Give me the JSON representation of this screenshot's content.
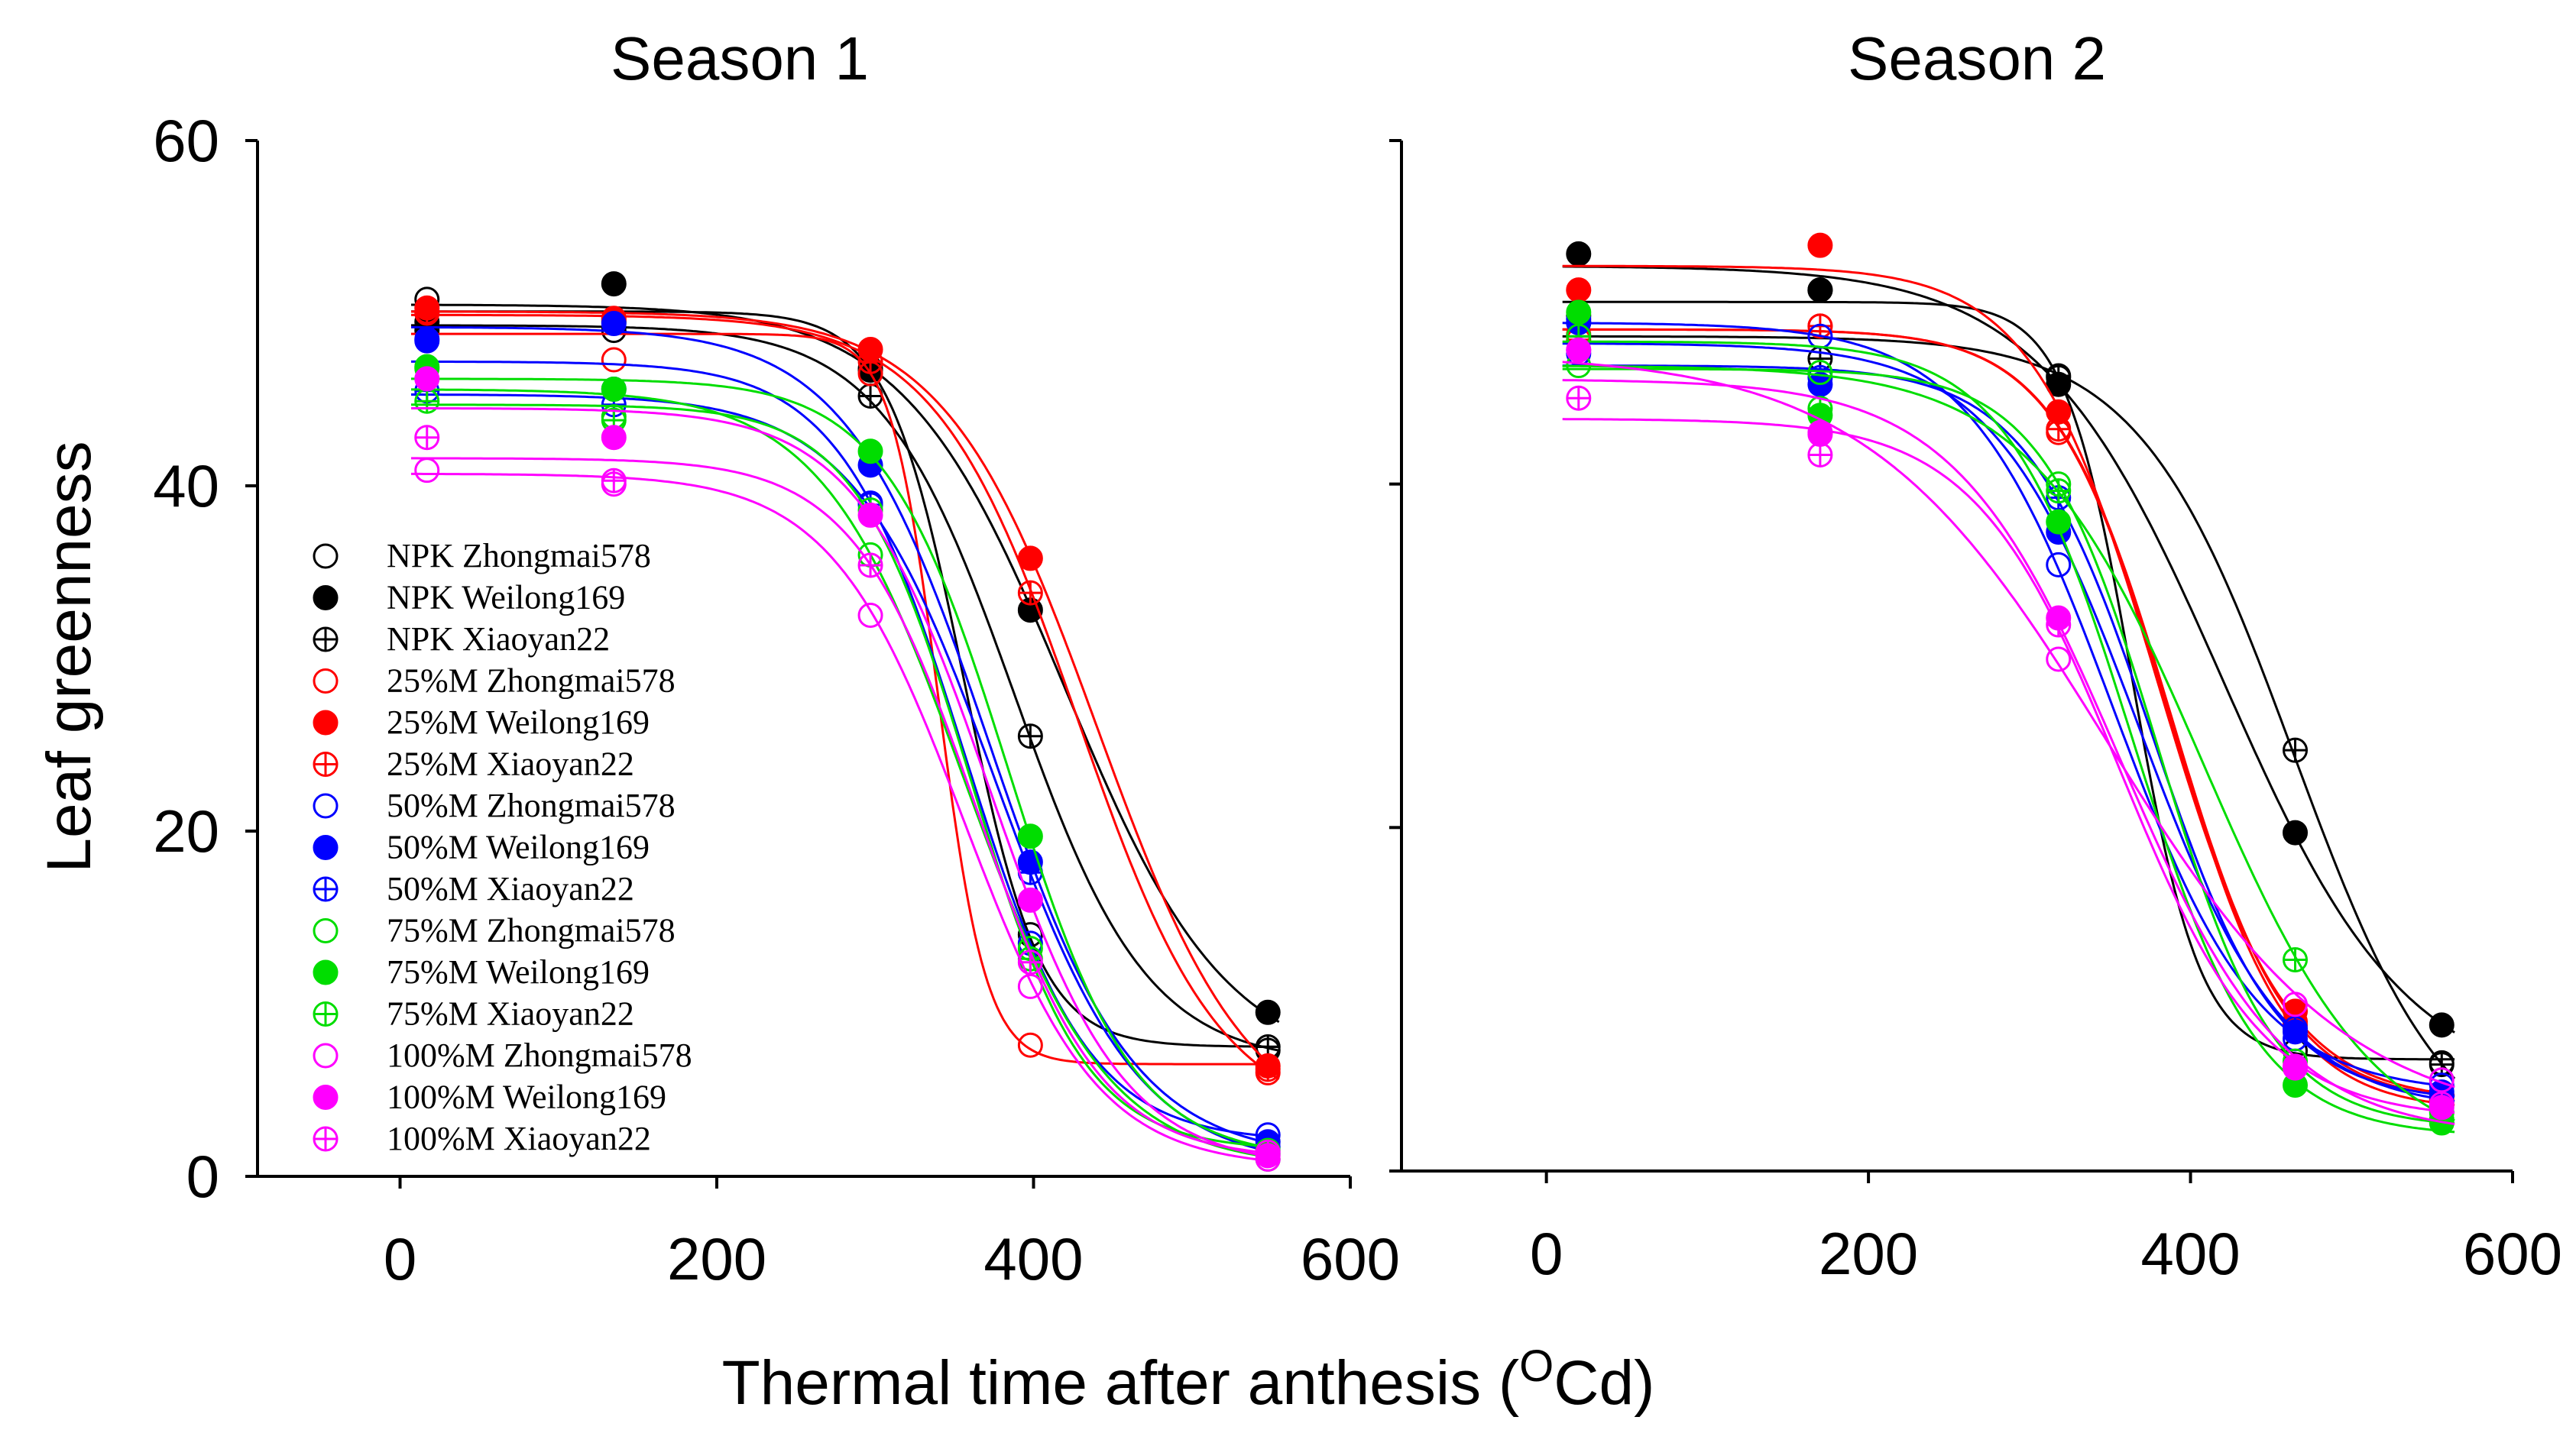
{
  "figure": {
    "ylabel": "Leaf greenness",
    "xlabel_main": "Thermal time after anthesis (",
    "xlabel_sup": "O",
    "xlabel_end": "Cd)"
  },
  "chart_data": [
    {
      "type": "scatter",
      "panel": "left",
      "title": "Season 1",
      "xlabel": "Thermal time after anthesis (OCd)",
      "ylabel": "Leaf greenness",
      "xlim": [
        -90,
        600
      ],
      "ylim": [
        0,
        60
      ],
      "xticks": [
        0,
        200,
        400,
        600
      ],
      "yticks": [
        0,
        20,
        40,
        60
      ],
      "xtick_labels": [
        "0",
        "200",
        "400",
        "600"
      ],
      "ytick_labels": [
        "0",
        "20",
        "40",
        "60"
      ],
      "legend_position": "bottom-left",
      "grid": false,
      "series": [
        {
          "name": "NPK Zhongmai578",
          "color": "#000000",
          "marker": "open",
          "x": [
            17,
            135,
            297,
            398,
            548
          ],
          "y": [
            50.8,
            49.0,
            46.8,
            14.0,
            7.3
          ]
        },
        {
          "name": "NPK Weilong169",
          "color": "#000000",
          "marker": "filled",
          "x": [
            17,
            135,
            297,
            398,
            548
          ],
          "y": [
            49.5,
            51.7,
            46.7,
            32.8,
            9.5
          ]
        },
        {
          "name": "NPK Xiaoyan22",
          "color": "#000000",
          "marker": "plus",
          "x": [
            17,
            135,
            297,
            398,
            548
          ],
          "y": [
            49.0,
            49.5,
            45.2,
            25.5,
            7.5
          ]
        },
        {
          "name": "25%M Zhongmai578",
          "color": "#ff0000",
          "marker": "open",
          "x": [
            17,
            135,
            297,
            398,
            548
          ],
          "y": [
            50.0,
            47.3,
            46.5,
            7.6,
            6.0
          ]
        },
        {
          "name": "25%M Weilong169",
          "color": "#ff0000",
          "marker": "filled",
          "x": [
            17,
            135,
            297,
            398,
            548
          ],
          "y": [
            50.3,
            49.7,
            47.9,
            35.8,
            6.4
          ]
        },
        {
          "name": "25%M Xiaoyan22",
          "color": "#ff0000",
          "marker": "plus",
          "x": [
            17,
            135,
            297,
            398,
            548
          ],
          "y": [
            50.1,
            49.6,
            47.2,
            33.8,
            6.2
          ]
        },
        {
          "name": "50%M Zhongmai578",
          "color": "#0000ff",
          "marker": "open",
          "x": [
            17,
            135,
            297,
            398,
            548
          ],
          "y": [
            48.4,
            45.6,
            39.0,
            13.5,
            2.4
          ]
        },
        {
          "name": "50%M Weilong169",
          "color": "#0000ff",
          "marker": "filled",
          "x": [
            17,
            135,
            297,
            398,
            548
          ],
          "y": [
            48.5,
            49.4,
            41.2,
            18.2,
            2.0
          ]
        },
        {
          "name": "50%M Xiaoyan22",
          "color": "#0000ff",
          "marker": "plus",
          "x": [
            17,
            135,
            297,
            398,
            548
          ],
          "y": [
            45.5,
            44.7,
            38.9,
            17.6,
            1.7
          ]
        },
        {
          "name": "75%M Zhongmai578",
          "color": "#00dd00",
          "marker": "open",
          "x": [
            17,
            135,
            297,
            398,
            548
          ],
          "y": [
            46.8,
            44.0,
            36.0,
            13.2,
            1.0
          ]
        },
        {
          "name": "75%M Weilong169",
          "color": "#00dd00",
          "marker": "filled",
          "x": [
            17,
            135,
            297,
            398,
            548
          ],
          "y": [
            46.9,
            45.6,
            42.0,
            19.7,
            1.3
          ]
        },
        {
          "name": "75%M Xiaoyan22",
          "color": "#00dd00",
          "marker": "plus",
          "x": [
            17,
            135,
            297,
            398,
            548
          ],
          "y": [
            44.9,
            43.8,
            38.6,
            12.6,
            1.5
          ]
        },
        {
          "name": "100%M Zhongmai578",
          "color": "#ff00ff",
          "marker": "open",
          "x": [
            17,
            135,
            297,
            398,
            548
          ],
          "y": [
            40.9,
            40.1,
            32.5,
            11.0,
            1.0
          ]
        },
        {
          "name": "100%M Weilong169",
          "color": "#ff00ff",
          "marker": "filled",
          "x": [
            17,
            135,
            297,
            398,
            548
          ],
          "y": [
            46.2,
            42.8,
            38.3,
            16.0,
            1.2
          ]
        },
        {
          "name": "100%M Xiaoyan22",
          "color": "#ff00ff",
          "marker": "plus",
          "x": [
            17,
            135,
            297,
            398,
            548
          ],
          "y": [
            42.8,
            40.3,
            35.4,
            12.4,
            1.4
          ]
        }
      ]
    },
    {
      "type": "scatter",
      "panel": "right",
      "title": "Season 2",
      "xlabel": "Thermal time after anthesis (OCd)",
      "ylabel": "Leaf greenness",
      "xlim": [
        -90,
        600
      ],
      "ylim": [
        0,
        60
      ],
      "xticks": [
        0,
        200,
        400,
        600
      ],
      "yticks": [
        0,
        20,
        40,
        60
      ],
      "xtick_labels": [
        "0",
        "200",
        "400",
        "600"
      ],
      "grid": false,
      "series": [
        {
          "name": "NPK Zhongmai578",
          "color": "#000000",
          "marker": "open",
          "x": [
            20,
            170,
            318,
            465,
            556
          ],
          "y": [
            49.4,
            51.3,
            46.2,
            7.0,
            6.3
          ]
        },
        {
          "name": "NPK Weilong169",
          "color": "#000000",
          "marker": "filled",
          "x": [
            20,
            170,
            318,
            465,
            556
          ],
          "y": [
            53.4,
            51.3,
            45.8,
            19.7,
            8.5
          ]
        },
        {
          "name": "NPK Xiaoyan22",
          "color": "#000000",
          "marker": "plus",
          "x": [
            20,
            170,
            318,
            465,
            556
          ],
          "y": [
            49.8,
            47.3,
            46.3,
            24.5,
            6.2
          ]
        },
        {
          "name": "25%M Zhongmai578",
          "color": "#ff0000",
          "marker": "open",
          "x": [
            20,
            170,
            318,
            465,
            556
          ],
          "y": [
            48.7,
            49.2,
            43.0,
            8.5,
            4.0
          ]
        },
        {
          "name": "25%M Weilong169",
          "color": "#ff0000",
          "marker": "filled",
          "x": [
            20,
            170,
            318,
            465,
            556
          ],
          "y": [
            51.3,
            53.9,
            44.2,
            9.3,
            4.2
          ]
        },
        {
          "name": "25%M Xiaoyan22",
          "color": "#ff0000",
          "marker": "plus",
          "x": [
            20,
            170,
            318,
            465,
            556
          ],
          "y": [
            48.4,
            49.2,
            43.2,
            8.7,
            4.1
          ]
        },
        {
          "name": "50%M Zhongmai578",
          "color": "#0000ff",
          "marker": "open",
          "x": [
            20,
            170,
            318,
            465,
            556
          ],
          "y": [
            49.6,
            48.6,
            35.3,
            7.7,
            5.0
          ]
        },
        {
          "name": "50%M Weilong169",
          "color": "#0000ff",
          "marker": "filled",
          "x": [
            20,
            170,
            318,
            465,
            556
          ],
          "y": [
            49.4,
            45.8,
            37.2,
            8.1,
            4.6
          ]
        },
        {
          "name": "50%M Xiaoyan22",
          "color": "#0000ff",
          "marker": "plus",
          "x": [
            20,
            170,
            318,
            465,
            556
          ],
          "y": [
            47.6,
            46.2,
            39.2,
            8.3,
            4.4
          ]
        },
        {
          "name": "75%M Zhongmai578",
          "color": "#00dd00",
          "marker": "open",
          "x": [
            20,
            170,
            318,
            465,
            556
          ],
          "y": [
            46.9,
            46.5,
            40.0,
            6.4,
            3.0
          ]
        },
        {
          "name": "75%M Weilong169",
          "color": "#00dd00",
          "marker": "filled",
          "x": [
            20,
            170,
            318,
            465,
            556
          ],
          "y": [
            50.0,
            44.0,
            37.8,
            5.0,
            2.8
          ]
        },
        {
          "name": "75%M Xiaoyan22",
          "color": "#00dd00",
          "marker": "plus",
          "x": [
            20,
            170,
            318,
            465,
            556
          ],
          "y": [
            48.6,
            44.4,
            39.6,
            12.3,
            3.4
          ]
        },
        {
          "name": "100%M Zhongmai578",
          "color": "#ff00ff",
          "marker": "open",
          "x": [
            20,
            170,
            318,
            465,
            556
          ],
          "y": [
            47.8,
            43.0,
            29.8,
            9.7,
            5.3
          ]
        },
        {
          "name": "100%M Weilong169",
          "color": "#ff00ff",
          "marker": "filled",
          "x": [
            20,
            170,
            318,
            465,
            556
          ],
          "y": [
            47.8,
            42.9,
            32.2,
            6.0,
            3.7
          ]
        },
        {
          "name": "100%M Xiaoyan22",
          "color": "#ff00ff",
          "marker": "plus",
          "x": [
            20,
            170,
            318,
            465,
            556
          ],
          "y": [
            45.0,
            41.7,
            31.8,
            6.1,
            3.9
          ]
        }
      ]
    }
  ]
}
